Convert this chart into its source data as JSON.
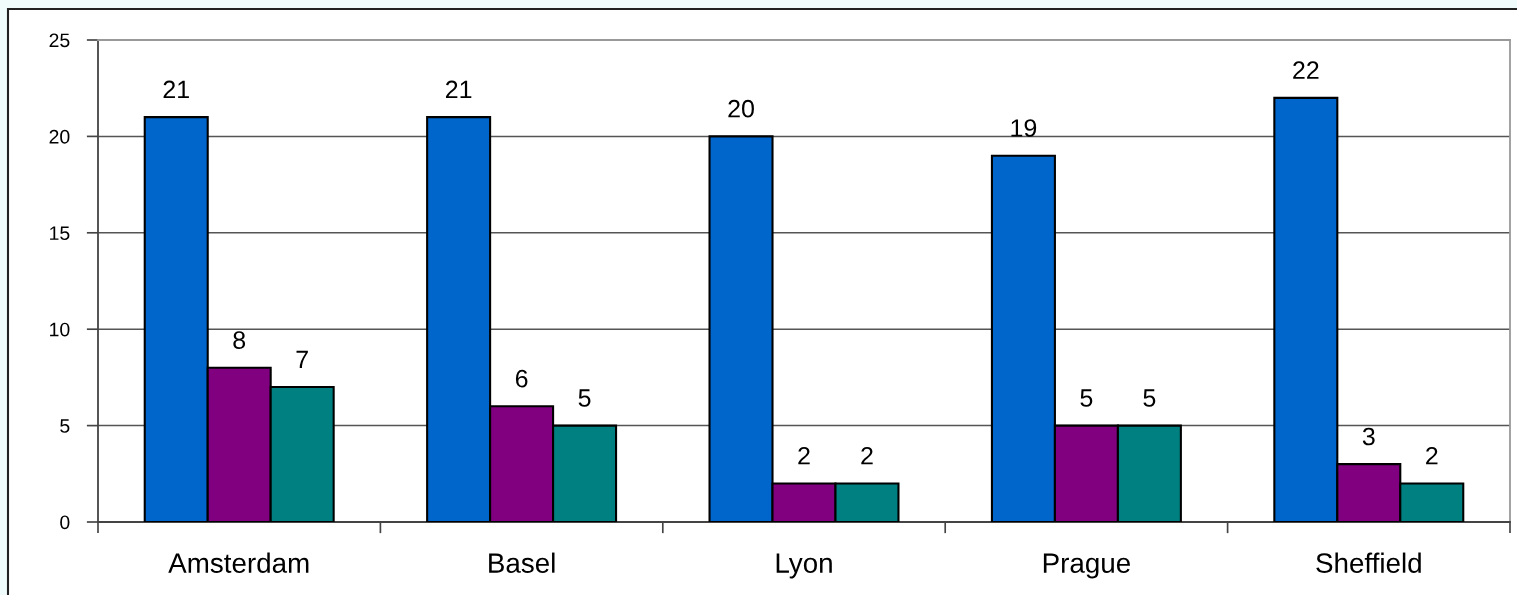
{
  "chart_data": {
    "type": "bar",
    "categories": [
      "Amsterdam",
      "Basel",
      "Lyon",
      "Prague",
      "Sheffield"
    ],
    "series": [
      {
        "color": "#0066cc",
        "values": [
          21,
          21,
          20,
          19,
          22
        ]
      },
      {
        "color": "#800080",
        "values": [
          8,
          6,
          2,
          5,
          3
        ]
      },
      {
        "color": "#008080",
        "values": [
          7,
          5,
          2,
          5,
          2
        ]
      }
    ],
    "ylim": [
      0,
      25
    ],
    "yticks": [
      0,
      5,
      10,
      15,
      20,
      25
    ],
    "grid": "y",
    "data_labels": true
  }
}
